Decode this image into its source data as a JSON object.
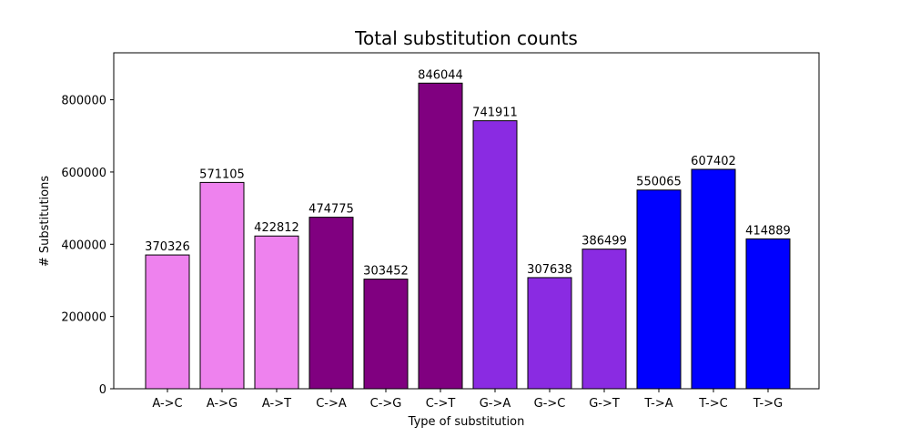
{
  "chart_data": {
    "type": "bar",
    "title": "Total substitution counts",
    "xlabel": "Type of substitution",
    "ylabel": "# Substitutions",
    "categories": [
      "A->C",
      "A->G",
      "A->T",
      "C->A",
      "C->G",
      "C->T",
      "G->A",
      "G->C",
      "G->T",
      "T->A",
      "T->C",
      "T->G"
    ],
    "values": [
      370326,
      571105,
      422812,
      474775,
      303452,
      846044,
      741911,
      307638,
      386499,
      550065,
      607402,
      414889
    ],
    "bar_colors": [
      "#EE82EE",
      "#EE82EE",
      "#EE82EE",
      "#800080",
      "#800080",
      "#800080",
      "#8A2BE2",
      "#8A2BE2",
      "#8A2BE2",
      "#0000FF",
      "#0000FF",
      "#0000FF"
    ],
    "data_labels": [
      "370326",
      "571105",
      "422812",
      "474775",
      "303452",
      "846044",
      "741911",
      "307638",
      "386499",
      "550065",
      "607402",
      "414889"
    ],
    "yticks": [
      0,
      200000,
      400000,
      600000,
      800000
    ],
    "ytick_labels": [
      "0",
      "200000",
      "400000",
      "600000",
      "800000"
    ],
    "ylim": [
      0,
      930000
    ],
    "grid": false,
    "legend": "none"
  }
}
